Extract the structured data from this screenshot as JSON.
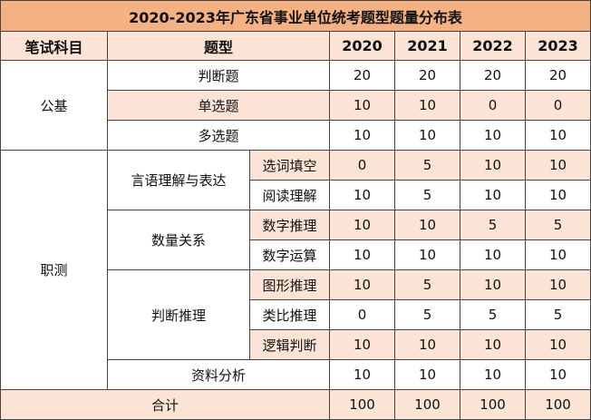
{
  "title": "2020-2023年广东省事业单位统考题型题量分布表",
  "headers": {
    "subject": "笔试科目",
    "type": "题型",
    "y2020": "2020",
    "y2021": "2021",
    "y2022": "2022",
    "y2023": "2023"
  },
  "gongji": {
    "label": "公基",
    "rows": [
      {
        "type": "判断题",
        "v": [
          "20",
          "20",
          "20",
          "20"
        ]
      },
      {
        "type": "单选题",
        "v": [
          "10",
          "10",
          "0",
          "0"
        ]
      },
      {
        "type": "多选题",
        "v": [
          "10",
          "10",
          "10",
          "10"
        ]
      }
    ]
  },
  "zhice": {
    "label": "职测",
    "groups": [
      {
        "label": "言语理解与表达",
        "rows": [
          {
            "type": "选词填空",
            "v": [
              "0",
              "5",
              "10",
              "10"
            ]
          },
          {
            "type": "阅读理解",
            "v": [
              "10",
              "5",
              "10",
              "10"
            ]
          }
        ]
      },
      {
        "label": "数量关系",
        "rows": [
          {
            "type": "数字推理",
            "v": [
              "10",
              "10",
              "5",
              "5"
            ]
          },
          {
            "type": "数字运算",
            "v": [
              "10",
              "10",
              "10",
              "10"
            ]
          }
        ]
      },
      {
        "label": "判断推理",
        "rows": [
          {
            "type": "图形推理",
            "v": [
              "10",
              "5",
              "10",
              "10"
            ]
          },
          {
            "type": "类比推理",
            "v": [
              "0",
              "5",
              "5",
              "5"
            ]
          },
          {
            "type": "逻辑判断",
            "v": [
              "10",
              "10",
              "10",
              "10"
            ]
          }
        ]
      }
    ],
    "ziliao": {
      "type": "资料分析",
      "v": [
        "10",
        "10",
        "10",
        "10"
      ]
    }
  },
  "total": {
    "label": "合计",
    "v": [
      "100",
      "100",
      "100",
      "100"
    ]
  },
  "colors": {
    "title_bg": "#f4b183",
    "band_bg": "#fbe4d5",
    "border": "#444444"
  }
}
